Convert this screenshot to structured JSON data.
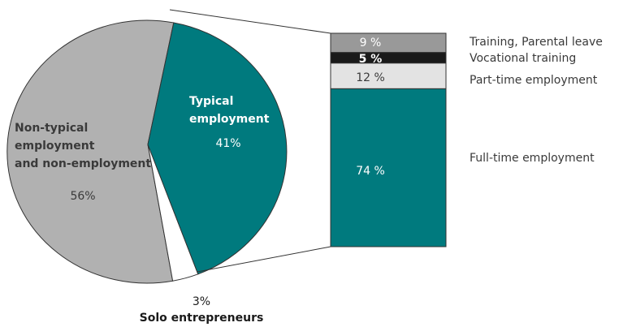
{
  "chart_data": [
    {
      "type": "pie",
      "slices": [
        {
          "label_lines": [
            "Non-typical",
            "employment",
            "and non-employment"
          ],
          "value": 56,
          "value_label": "56%",
          "color": "#b1b1b1"
        },
        {
          "label_lines": [
            "Solo entrepreneurs"
          ],
          "value": 3,
          "value_label": "3%",
          "color": "#ffffff"
        },
        {
          "label_lines": [
            "Typical",
            "employment"
          ],
          "value": 41,
          "value_label": "41%",
          "color": "#007a7e"
        }
      ]
    },
    {
      "type": "bar",
      "stacked": true,
      "segments": [
        {
          "label": "Training, Parental leave",
          "value": 9,
          "value_label": "9 %",
          "color": "#999999"
        },
        {
          "label": "Vocational training",
          "value": 5,
          "value_label": "5 %",
          "color": "#1a1a1a"
        },
        {
          "label": "Part-time employment",
          "value": 12,
          "value_label": "12 %",
          "color": "#e3e3e3"
        },
        {
          "label": "Full-time employment",
          "value": 74,
          "value_label": "74 %",
          "color": "#007a7e"
        }
      ]
    }
  ]
}
